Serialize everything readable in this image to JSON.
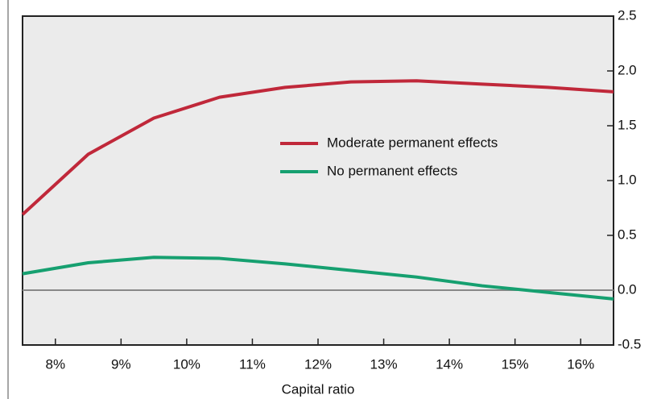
{
  "chart_data": {
    "type": "line",
    "x": [
      7.5,
      8.5,
      9.5,
      10.5,
      11.5,
      12.5,
      13.5,
      14.5,
      15.5,
      16.5
    ],
    "series": [
      {
        "name": "Moderate permanent effects",
        "color": "#c0283a",
        "values": [
          0.69,
          1.24,
          1.57,
          1.76,
          1.85,
          1.9,
          1.91,
          1.88,
          1.85,
          1.81
        ]
      },
      {
        "name": "No permanent effects",
        "color": "#16a070",
        "values": [
          0.15,
          0.25,
          0.3,
          0.29,
          0.24,
          0.18,
          0.12,
          0.04,
          -0.02,
          -0.08
        ]
      }
    ],
    "xlabel": "Capital ratio",
    "xlim": [
      7.5,
      16.5
    ],
    "xticks": [
      {
        "value": 8,
        "label": "8%"
      },
      {
        "value": 9,
        "label": "9%"
      },
      {
        "value": 10,
        "label": "10%"
      },
      {
        "value": 11,
        "label": "11%"
      },
      {
        "value": 12,
        "label": "12%"
      },
      {
        "value": 13,
        "label": "13%"
      },
      {
        "value": 14,
        "label": "14%"
      },
      {
        "value": 15,
        "label": "15%"
      },
      {
        "value": 16,
        "label": "16%"
      }
    ],
    "ylim": [
      -0.5,
      2.5
    ],
    "yticks": [
      -0.5,
      {
        "value": 0,
        "label": "0.0"
      },
      0.5,
      {
        "value": 1,
        "label": "1.0"
      },
      1.5,
      {
        "value": 2,
        "label": "2.0"
      },
      2.5
    ],
    "legend": "center-right"
  }
}
